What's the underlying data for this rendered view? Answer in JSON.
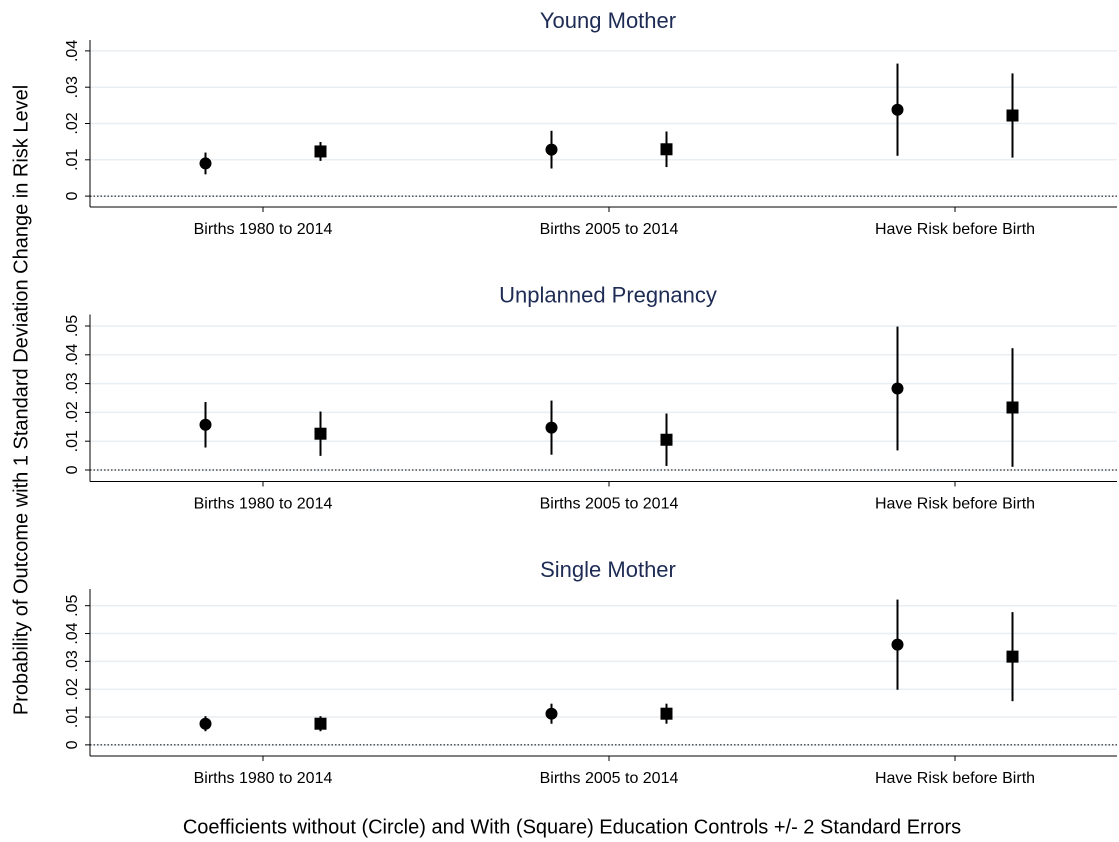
{
  "y_label": "Probability of Outcome with 1 Standard Deviation Change in Risk Level",
  "x_label": "Coefficients without (Circle) and With (Square) Education Controls +/- 2 Standard Errors",
  "chart_data": [
    {
      "type": "errorbar",
      "title": "Young Mother",
      "categories": [
        "Births 1980 to 2014",
        "Births 2005 to 2014",
        "Have Risk before Birth"
      ],
      "series": [
        {
          "marker": "circle",
          "color": "#000000",
          "values": [
            0.009,
            0.0128,
            0.0238
          ],
          "errors": [
            0.003,
            0.0052,
            0.0127
          ]
        },
        {
          "marker": "square",
          "color": "#000000",
          "values": [
            0.0123,
            0.0129,
            0.0222
          ],
          "errors": [
            0.0026,
            0.0049,
            0.0116
          ]
        }
      ],
      "ylim": [
        -0.003,
        0.043
      ],
      "yticks": [
        0,
        {
          "value": 0.01,
          "label": ".01"
        },
        {
          "value": 0.02,
          "label": ".02"
        },
        {
          "value": 0.03,
          "label": ".03"
        },
        {
          "value": 0.04,
          "label": ".04"
        }
      ],
      "grid": true
    },
    {
      "type": "errorbar",
      "title": "Unplanned Pregnancy",
      "categories": [
        "Births 1980 to 2014",
        "Births 2005 to 2014",
        "Have Risk before Birth"
      ],
      "series": [
        {
          "marker": "circle",
          "color": "#000000",
          "values": [
            0.0157,
            0.0147,
            0.0283
          ],
          "errors": [
            0.0079,
            0.0094,
            0.0215
          ]
        },
        {
          "marker": "square",
          "color": "#000000",
          "values": [
            0.0126,
            0.0105,
            0.0217
          ],
          "errors": [
            0.0077,
            0.0091,
            0.0206
          ]
        }
      ],
      "ylim": [
        -0.004,
        0.054
      ],
      "yticks": [
        0,
        {
          "value": 0.01,
          "label": ".01"
        },
        {
          "value": 0.02,
          "label": ".02"
        },
        {
          "value": 0.03,
          "label": ".03"
        },
        {
          "value": 0.04,
          "label": ".04"
        },
        {
          "value": 0.05,
          "label": ".05"
        }
      ],
      "grid": true
    },
    {
      "type": "errorbar",
      "title": "Single Mother",
      "categories": [
        "Births 1980 to 2014",
        "Births 2005 to 2014",
        "Have Risk before Birth"
      ],
      "series": [
        {
          "marker": "circle",
          "color": "#000000",
          "values": [
            0.0076,
            0.0112,
            0.036
          ],
          "errors": [
            0.0027,
            0.0036,
            0.0162
          ]
        },
        {
          "marker": "square",
          "color": "#000000",
          "values": [
            0.0076,
            0.0112,
            0.0317
          ],
          "errors": [
            0.0027,
            0.0036,
            0.016
          ]
        }
      ],
      "ylim": [
        -0.004,
        0.056
      ],
      "yticks": [
        0,
        {
          "value": 0.01,
          "label": ".01"
        },
        {
          "value": 0.02,
          "label": ".02"
        },
        {
          "value": 0.03,
          "label": ".03"
        },
        {
          "value": 0.04,
          "label": ".04"
        },
        {
          "value": 0.05,
          "label": ".05"
        }
      ],
      "grid": true
    }
  ]
}
